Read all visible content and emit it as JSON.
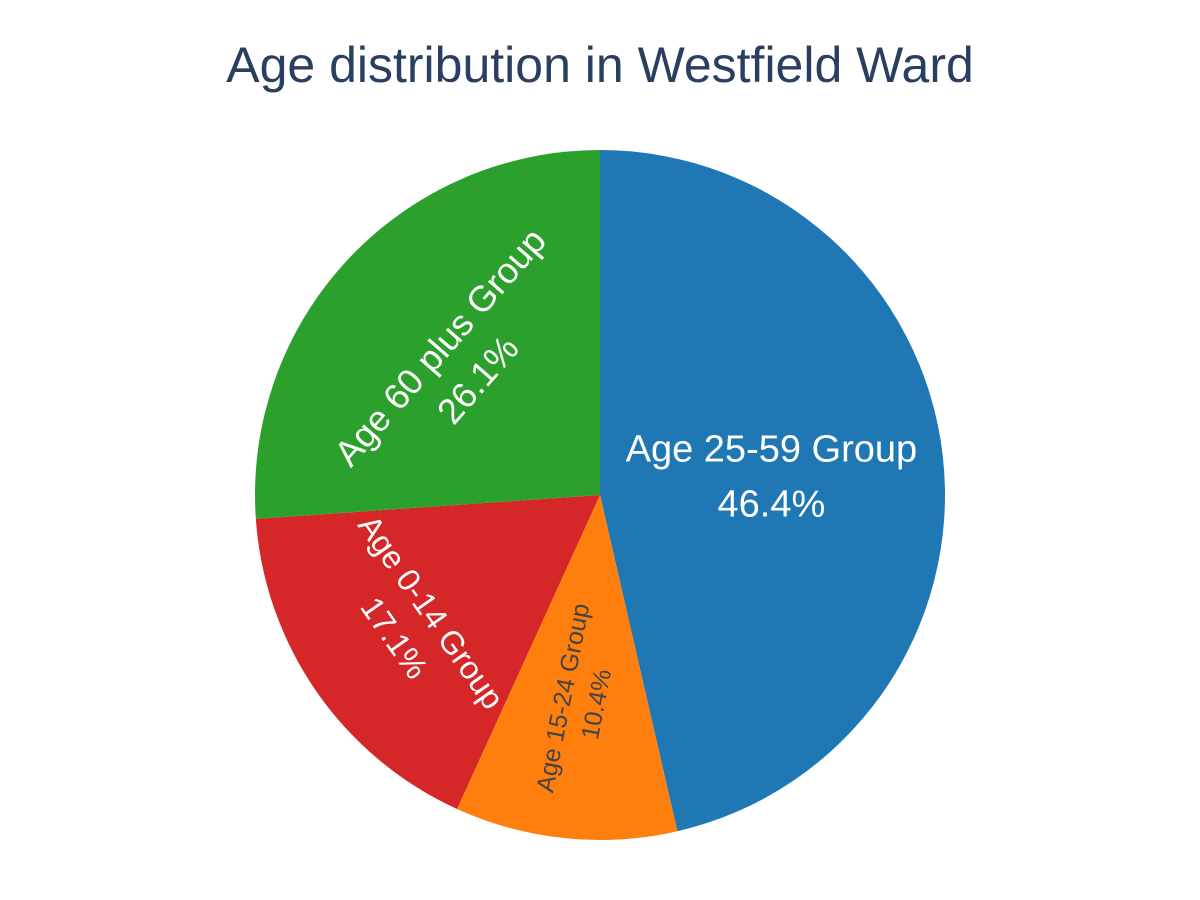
{
  "chart_data": {
    "type": "pie",
    "title": "Age distribution in Westfield Ward",
    "slices": [
      {
        "label": "Age 25-59 Group",
        "percent": "46.4%",
        "value": 46.4,
        "color": "#1f77b4",
        "text_color": "#ffffff"
      },
      {
        "label": "Age 15-24 Group",
        "percent": "10.4%",
        "value": 10.4,
        "color": "#ff7f0e",
        "text_color": "#444444"
      },
      {
        "label": "Age 0-14 Group",
        "percent": "17.1%",
        "value": 17.1,
        "color": "#d62728",
        "text_color": "#ffffff"
      },
      {
        "label": "Age 60 plus Group",
        "percent": "26.1%",
        "value": 26.1,
        "color": "#2ca02c",
        "text_color": "#ffffff"
      }
    ],
    "direction": "clockwise",
    "start": "top",
    "legend": "none"
  }
}
